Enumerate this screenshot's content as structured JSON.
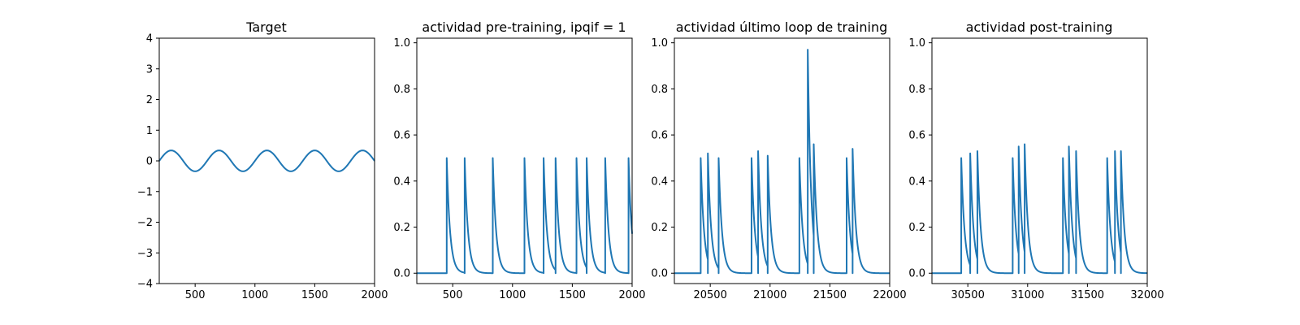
{
  "chart_data": [
    {
      "type": "line",
      "title": "Target",
      "xlabel": "",
      "ylabel": "",
      "xlim": [
        200,
        2000
      ],
      "ylim": [
        -4,
        4
      ],
      "xticks": [
        500,
        1000,
        1500,
        2000
      ],
      "yticks": [
        -4,
        -3,
        -2,
        -1,
        0,
        1,
        2,
        3,
        4
      ],
      "xtick_labels": [
        "500",
        "1000",
        "1500",
        "2000"
      ],
      "ytick_labels": [
        "−4",
        "−3",
        "−2",
        "−1",
        "0",
        "1",
        "2",
        "3",
        "4"
      ],
      "grid": false,
      "series": [
        {
          "kind": "sine",
          "amplitude": 0.34,
          "period": 400,
          "phase_zero_at": 400,
          "color": "#1f77b4"
        }
      ]
    },
    {
      "type": "line",
      "title": "actividad pre-training, ipqif = 1",
      "xlabel": "",
      "ylabel": "",
      "xlim": [
        200,
        2000
      ],
      "ylim": [
        -0.045,
        1.02
      ],
      "xticks": [
        500,
        1000,
        1500,
        2000
      ],
      "yticks": [
        0.0,
        0.2,
        0.4,
        0.6,
        0.8,
        1.0
      ],
      "xtick_labels": [
        "500",
        "1000",
        "1500",
        "2000"
      ],
      "ytick_labels": [
        "0.0",
        "0.2",
        "0.4",
        "0.6",
        "0.8",
        "1.0"
      ],
      "grid": false,
      "series": [
        {
          "kind": "spikes",
          "decay": 28,
          "color": "#1f77b4",
          "spike_times": [
            450,
            600,
            835,
            1100,
            1260,
            1360,
            1535,
            1620,
            1775,
            1970
          ],
          "spike_heights": [
            0.5,
            0.5,
            0.5,
            0.5,
            0.5,
            0.5,
            0.5,
            0.5,
            0.5,
            0.5
          ]
        }
      ]
    },
    {
      "type": "line",
      "title": "actividad último loop de training",
      "xlabel": "",
      "ylabel": "",
      "xlim": [
        20200,
        22000
      ],
      "ylim": [
        -0.045,
        1.02
      ],
      "xticks": [
        20500,
        21000,
        21500,
        22000
      ],
      "yticks": [
        0.0,
        0.2,
        0.4,
        0.6,
        0.8,
        1.0
      ],
      "xtick_labels": [
        "20500",
        "21000",
        "21500",
        "22000"
      ],
      "ytick_labels": [
        "0.0",
        "0.2",
        "0.4",
        "0.6",
        "0.8",
        "1.0"
      ],
      "grid": false,
      "series": [
        {
          "kind": "spikes",
          "decay": 28,
          "color": "#1f77b4",
          "spike_times": [
            20420,
            20480,
            20570,
            20845,
            20900,
            20980,
            21245,
            21315,
            21365,
            21640,
            21690
          ],
          "spike_heights": [
            0.5,
            0.52,
            0.5,
            0.5,
            0.53,
            0.51,
            0.5,
            0.97,
            0.56,
            0.5,
            0.54
          ]
        }
      ]
    },
    {
      "type": "line",
      "title": "actividad post-training",
      "xlabel": "",
      "ylabel": "",
      "xlim": [
        30200,
        32000
      ],
      "ylim": [
        -0.045,
        1.02
      ],
      "xticks": [
        30500,
        31000,
        31500,
        32000
      ],
      "yticks": [
        0.0,
        0.2,
        0.4,
        0.6,
        0.8,
        1.0
      ],
      "xtick_labels": [
        "30500",
        "31000",
        "31500",
        "32000"
      ],
      "ytick_labels": [
        "0.0",
        "0.2",
        "0.4",
        "0.6",
        "0.8",
        "1.0"
      ],
      "grid": false,
      "series": [
        {
          "kind": "spikes",
          "decay": 28,
          "color": "#1f77b4",
          "spike_times": [
            30445,
            30520,
            30580,
            30875,
            30925,
            30975,
            31295,
            31345,
            31405,
            31665,
            31730,
            31780
          ],
          "spike_heights": [
            0.5,
            0.52,
            0.53,
            0.5,
            0.55,
            0.56,
            0.5,
            0.55,
            0.53,
            0.5,
            0.53,
            0.53
          ]
        }
      ]
    }
  ]
}
